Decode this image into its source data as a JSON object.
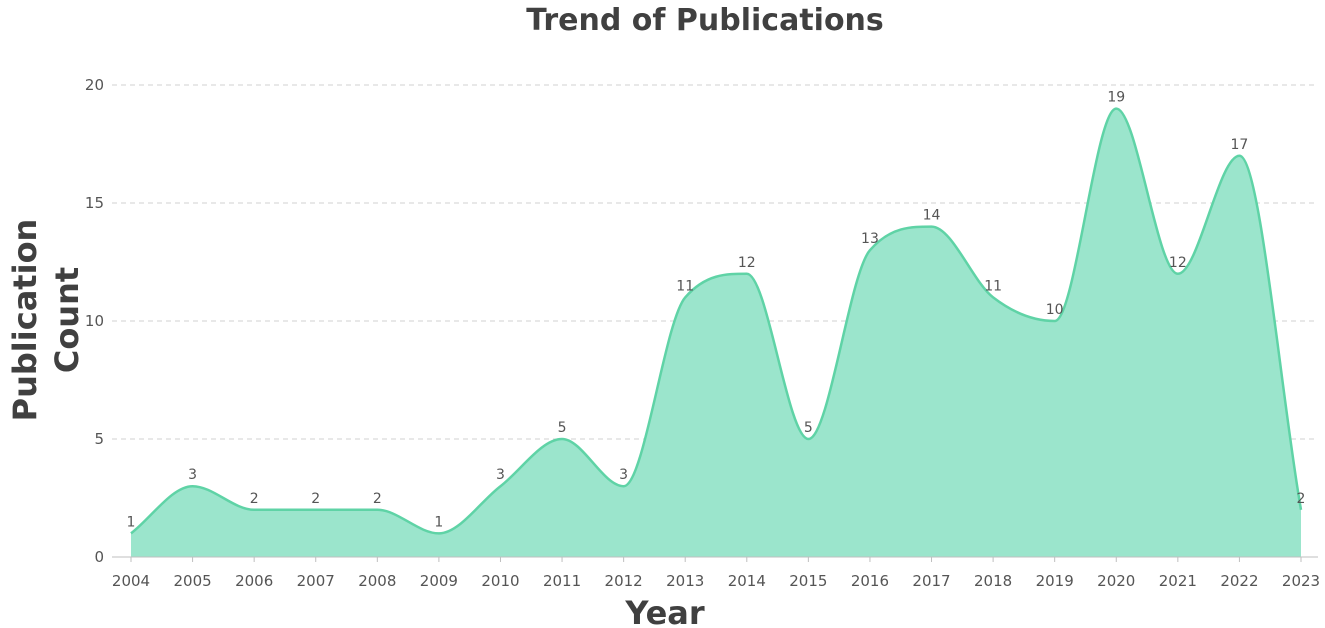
{
  "chart_data": {
    "type": "area",
    "title": "Trend of Publications",
    "xlabel": "Year",
    "ylabel_lines": [
      "Publication",
      "Count"
    ],
    "ylim": [
      0,
      20
    ],
    "yticks": [
      0,
      5,
      10,
      15,
      20
    ],
    "grid": true,
    "smooth": true,
    "colors": {
      "fill": "#9be5cc",
      "line": "#5fd3a6",
      "text": "#404040"
    },
    "categories": [
      "2004",
      "2005",
      "2006",
      "2007",
      "2008",
      "2009",
      "2010",
      "2011",
      "2012",
      "2013",
      "2014",
      "2015",
      "2016",
      "2017",
      "2018",
      "2019",
      "2020",
      "2021",
      "2022",
      "2023"
    ],
    "series": [
      {
        "values": [
          1,
          3,
          2,
          2,
          2,
          1,
          3,
          5,
          3,
          11,
          12,
          5,
          13,
          14,
          11,
          10,
          19,
          12,
          17,
          2
        ]
      }
    ]
  }
}
